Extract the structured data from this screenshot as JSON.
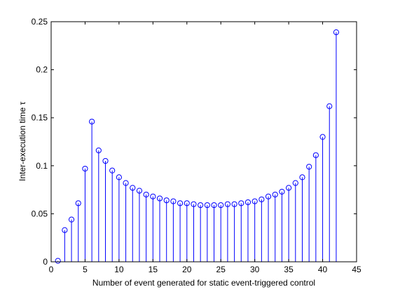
{
  "chart_data": {
    "type": "stem",
    "title": "",
    "xlabel": "Number of event generated for static event-triggered control",
    "ylabel": "Inter-execution time τ",
    "xlim": [
      0,
      45
    ],
    "ylim": [
      0,
      0.25
    ],
    "xticks": [
      0,
      5,
      10,
      15,
      20,
      25,
      30,
      35,
      40,
      45
    ],
    "yticks": [
      0,
      0.05,
      0.1,
      0.15,
      0.2,
      0.25
    ],
    "xtick_labels": [
      "0",
      "5",
      "10",
      "15",
      "20",
      "25",
      "30",
      "35",
      "40",
      "45"
    ],
    "ytick_labels": [
      "0",
      "0.05",
      "0.1",
      "0.15",
      "0.2",
      "0.25"
    ],
    "grid": false,
    "legend": false,
    "marker": "circle",
    "color": "#0000ff",
    "series": [
      {
        "x": [
          1,
          2,
          3,
          4,
          5,
          6,
          7,
          8,
          9,
          10,
          11,
          12,
          13,
          14,
          15,
          16,
          17,
          18,
          19,
          20,
          21,
          22,
          23,
          24,
          25,
          26,
          27,
          28,
          29,
          30,
          31,
          32,
          33,
          34,
          35,
          36,
          37,
          38,
          39,
          40,
          41,
          42
        ],
        "values": [
          0.001,
          0.033,
          0.044,
          0.061,
          0.097,
          0.146,
          0.116,
          0.105,
          0.095,
          0.088,
          0.082,
          0.077,
          0.074,
          0.07,
          0.068,
          0.066,
          0.064,
          0.063,
          0.061,
          0.061,
          0.06,
          0.059,
          0.059,
          0.059,
          0.059,
          0.06,
          0.06,
          0.061,
          0.062,
          0.063,
          0.065,
          0.068,
          0.07,
          0.073,
          0.077,
          0.082,
          0.088,
          0.099,
          0.111,
          0.13,
          0.162,
          0.239
        ]
      }
    ]
  }
}
